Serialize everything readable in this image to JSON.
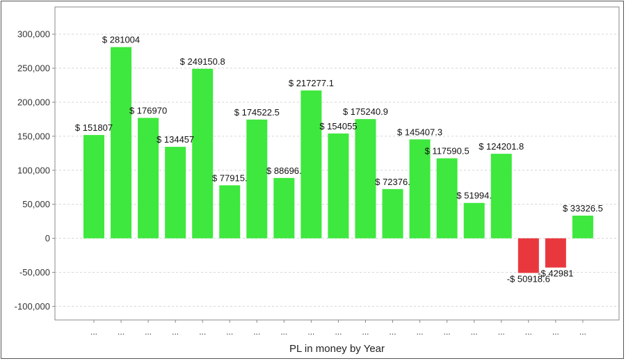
{
  "chart_data": {
    "type": "bar",
    "xlabel": "PL in money by Year",
    "ylabel": "",
    "ylim": [
      -120000,
      340000
    ],
    "yticks": [
      -100000,
      -50000,
      0,
      50000,
      100000,
      150000,
      200000,
      250000,
      300000
    ],
    "ytick_labels": [
      "-100,000",
      "-50,000",
      "0",
      "50,000",
      "100,000",
      "150,000",
      "200,000",
      "250,000",
      "300,000"
    ],
    "grid": true,
    "categories": [
      "...",
      "...",
      "...",
      "...",
      "...",
      "...",
      "...",
      "...",
      "...",
      "...",
      "...",
      "...",
      "...",
      "...",
      "...",
      "...",
      "...",
      "...",
      "..."
    ],
    "values": [
      151807,
      281004,
      176970,
      134457,
      249150.8,
      77915,
      174522.5,
      88696,
      217277.1,
      154055,
      175240.9,
      72376,
      145407.3,
      117590.5,
      51994,
      124201.8,
      -50918.6,
      -42981,
      33326.5
    ],
    "data_labels": [
      "$ 151807",
      "$ 281004",
      "$ 176970",
      "$ 134457",
      "$ 249150.8",
      "$ 77915.",
      "$ 174522.5",
      "$ 88696.",
      "$ 217277.1",
      "$ 154055",
      "$ 175240.9",
      "$ 72376.",
      "$ 145407.3",
      "$ 117590.5",
      "$ 51994.",
      "$ 124201.8",
      "-$ 50918.6",
      "-$ 42981",
      "$ 33326.5"
    ],
    "colors": {
      "positive": "#3ee83e",
      "negative": "#e8383e",
      "grid": "#d6d6d6",
      "axis": "#888888"
    }
  }
}
